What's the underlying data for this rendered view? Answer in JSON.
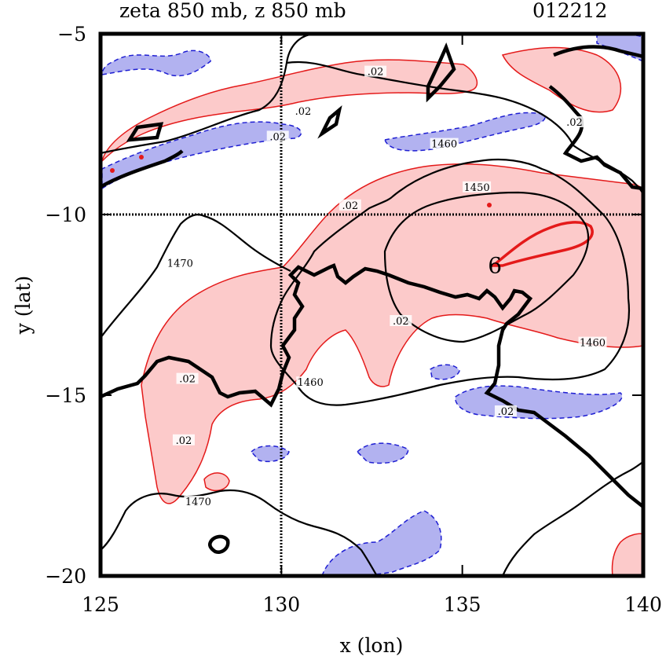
{
  "title_left": "zeta 850 mb, z 850 mb",
  "title_right": "012212",
  "colors": {
    "positive_fill": "#fccaca",
    "positive_line": "#e41a1a",
    "negative_fill": "#b2b2f0",
    "negative_line": "#1e1ed2",
    "contour_line": "#000000"
  },
  "chart_data": {
    "type": "contour",
    "title": "zeta 850 mb, z 850 mb",
    "timestamp": "012212",
    "xlabel": "x (lon)",
    "ylabel": "y (lat)",
    "xlim": [
      125,
      140
    ],
    "ylim": [
      -20,
      -5
    ],
    "xticks": [
      125,
      130,
      135,
      140
    ],
    "yticks": [
      -5,
      -10,
      -15,
      -20
    ],
    "xtick_labels": [
      "125",
      "130",
      "135",
      "140"
    ],
    "ytick_labels": [
      "−5",
      "−10",
      "−15",
      "−20"
    ],
    "reference_lines": {
      "lon": 130,
      "lat": -10
    },
    "fields": [
      {
        "name": "zeta",
        "level": "850 mb",
        "contour_interval": 0.02,
        "shading": "positive red, negative blue dashed"
      },
      {
        "name": "z",
        "level": "850 mb",
        "contour_levels": [
          1450,
          1460,
          1470
        ]
      }
    ],
    "contour_labels": [
      {
        "text": "1450",
        "x": 135.4,
        "y": -9.3
      },
      {
        "text": "1460",
        "x": 134.5,
        "y": -8.1
      },
      {
        "text": "1460",
        "x": 138.6,
        "y": -13.6
      },
      {
        "text": "1460",
        "x": 130.8,
        "y": -14.7
      },
      {
        "text": "1470",
        "x": 127.2,
        "y": -11.4
      },
      {
        "text": "1470",
        "x": 127.7,
        "y": -18.0
      },
      {
        "text": ".02",
        "x": 132.6,
        "y": -6.1
      },
      {
        "text": ".02",
        "x": 130.6,
        "y": -7.2
      },
      {
        "text": ".02",
        "x": 129.9,
        "y": -7.9
      },
      {
        "text": ".02",
        "x": 131.9,
        "y": -9.8
      },
      {
        "text": ".02",
        "x": 127.4,
        "y": -14.6
      },
      {
        "text": ".02",
        "x": 127.3,
        "y": -16.3
      },
      {
        "text": ".02",
        "x": 133.3,
        "y": -13.0
      },
      {
        "text": ".02",
        "x": 138.1,
        "y": -7.5
      },
      {
        "text": ".02",
        "x": 136.2,
        "y": -15.5
      }
    ],
    "annotations": [
      {
        "text": "6",
        "x": 135.9,
        "y": -11.4,
        "color": "#1e1ed2"
      }
    ]
  }
}
